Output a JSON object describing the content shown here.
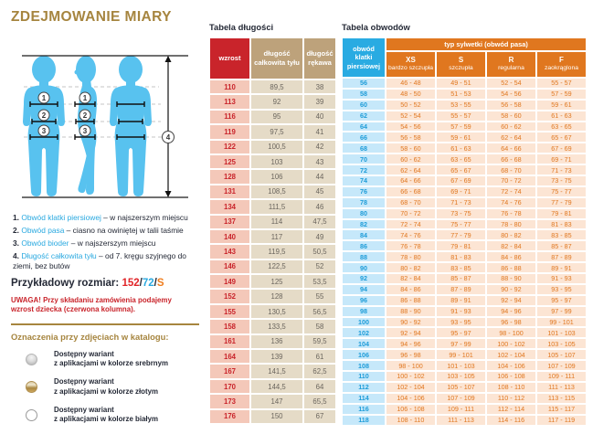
{
  "colors": {
    "accent_gold": "#a6853f",
    "red": "#c9242b",
    "blue": "#29abe2",
    "orange": "#e0771f",
    "tan": "#bda27b",
    "silhouette_blue": "#58c2ef"
  },
  "left_panel": {
    "title": "ZDEJMOWANIE MIARY",
    "illustration": {
      "markers": [
        "1",
        "2",
        "3",
        "4"
      ]
    },
    "measurements": [
      {
        "num": "1.",
        "term": "Obwód klatki piersiowej",
        "desc": " – w najszerszym miejscu"
      },
      {
        "num": "2.",
        "term": "Obwód pasa",
        "desc": " – ciasno na owiniętej w talii taśmie"
      },
      {
        "num": "3.",
        "term": "Obwód bioder",
        "desc": " – w najszerszym miejscu"
      },
      {
        "num": "4.",
        "term": "Długość całkowita tyłu",
        "desc": " – od 7. kręgu szyjnego do ziemi, bez butów"
      }
    ],
    "example_size": {
      "label": "Przykładowy rozmiar: ",
      "height": "152",
      "sep1": "/",
      "waist": "72",
      "sep2": "/",
      "figure": "S"
    },
    "warning": "UWAGA! Przy składaniu zamówienia podajemy wzrost dziecka (czerwona kolumna).",
    "legend": {
      "heading": "Oznaczenia przy zdjęciach w katalogu:",
      "items": [
        {
          "variant": "silver",
          "line1": "Dostępny wariant",
          "line2": "z aplikacjami w kolorze srebrnym"
        },
        {
          "variant": "gold",
          "line1": "Dostępny wariant",
          "line2": "z aplikacjami w kolorze złotym"
        },
        {
          "variant": "white",
          "line1": "Dostępny wariant",
          "line2": "z aplikacjami w kolorze białym"
        }
      ]
    }
  },
  "length_table": {
    "title": "Tabela długości",
    "headers": [
      "wzrost",
      "długość całkowita tyłu",
      "długość rękawa"
    ],
    "rows": [
      [
        "110",
        "89,5",
        "38"
      ],
      [
        "113",
        "92",
        "39"
      ],
      [
        "116",
        "95",
        "40"
      ],
      [
        "119",
        "97,5",
        "41"
      ],
      [
        "122",
        "100,5",
        "42"
      ],
      [
        "125",
        "103",
        "43"
      ],
      [
        "128",
        "106",
        "44"
      ],
      [
        "131",
        "108,5",
        "45"
      ],
      [
        "134",
        "111,5",
        "46"
      ],
      [
        "137",
        "114",
        "47,5"
      ],
      [
        "140",
        "117",
        "49"
      ],
      [
        "143",
        "119,5",
        "50,5"
      ],
      [
        "146",
        "122,5",
        "52"
      ],
      [
        "149",
        "125",
        "53,5"
      ],
      [
        "152",
        "128",
        "55"
      ],
      [
        "155",
        "130,5",
        "56,5"
      ],
      [
        "158",
        "133,5",
        "58"
      ],
      [
        "161",
        "136",
        "59,5"
      ],
      [
        "164",
        "139",
        "61"
      ],
      [
        "167",
        "141,5",
        "62,5"
      ],
      [
        "170",
        "144,5",
        "64"
      ],
      [
        "173",
        "147",
        "65,5"
      ],
      [
        "176",
        "150",
        "67"
      ]
    ]
  },
  "girth_table": {
    "title": "Tabela obwodów",
    "col1_header": "obwód klatki piersiowej",
    "span_header": "typ sylwetki (obwód pasa)",
    "sub_headers": [
      {
        "code": "XS",
        "name": "bardzo szczupła"
      },
      {
        "code": "S",
        "name": "szczupła"
      },
      {
        "code": "R",
        "name": "regularna"
      },
      {
        "code": "F",
        "name": "zaokrąglona"
      }
    ],
    "rows": [
      [
        "56",
        "46 - 48",
        "49 - 51",
        "52 - 54",
        "55 - 57"
      ],
      [
        "58",
        "48 - 50",
        "51 - 53",
        "54 - 56",
        "57 - 59"
      ],
      [
        "60",
        "50 - 52",
        "53 - 55",
        "56 - 58",
        "59 - 61"
      ],
      [
        "62",
        "52 - 54",
        "55 - 57",
        "58 - 60",
        "61 - 63"
      ],
      [
        "64",
        "54 - 56",
        "57 - 59",
        "60 - 62",
        "63 - 65"
      ],
      [
        "66",
        "56 - 58",
        "59 - 61",
        "62 - 64",
        "65 - 67"
      ],
      [
        "68",
        "58 - 60",
        "61 - 63",
        "64 - 66",
        "67 - 69"
      ],
      [
        "70",
        "60 - 62",
        "63 - 65",
        "66 - 68",
        "69 - 71"
      ],
      [
        "72",
        "62 - 64",
        "65 - 67",
        "68 - 70",
        "71 - 73"
      ],
      [
        "74",
        "64 - 66",
        "67 - 69",
        "70 - 72",
        "73 - 75"
      ],
      [
        "76",
        "66 - 68",
        "69 - 71",
        "72 - 74",
        "75 - 77"
      ],
      [
        "78",
        "68 - 70",
        "71 - 73",
        "74 - 76",
        "77 - 79"
      ],
      [
        "80",
        "70 - 72",
        "73 - 75",
        "76 - 78",
        "79 - 81"
      ],
      [
        "82",
        "72 - 74",
        "75 - 77",
        "78 - 80",
        "81 - 83"
      ],
      [
        "84",
        "74 - 76",
        "77 - 79",
        "80 - 82",
        "83 - 85"
      ],
      [
        "86",
        "76 - 78",
        "79 - 81",
        "82 - 84",
        "85 - 87"
      ],
      [
        "88",
        "78 - 80",
        "81 - 83",
        "84 - 86",
        "87 - 89"
      ],
      [
        "90",
        "80 - 82",
        "83 - 85",
        "86 - 88",
        "89 - 91"
      ],
      [
        "92",
        "82 - 84",
        "85 - 87",
        "88 - 90",
        "91 - 93"
      ],
      [
        "94",
        "84 - 86",
        "87 - 89",
        "90 - 92",
        "93 - 95"
      ],
      [
        "96",
        "86 - 88",
        "89 - 91",
        "92 - 94",
        "95 - 97"
      ],
      [
        "98",
        "88 - 90",
        "91 - 93",
        "94 - 96",
        "97 - 99"
      ],
      [
        "100",
        "90 - 92",
        "93 - 95",
        "96 - 98",
        "99 - 101"
      ],
      [
        "102",
        "92 - 94",
        "95 - 97",
        "98 - 100",
        "101 - 103"
      ],
      [
        "104",
        "94 - 96",
        "97 - 99",
        "100 - 102",
        "103 - 105"
      ],
      [
        "106",
        "96 - 98",
        "99 - 101",
        "102 - 104",
        "105 - 107"
      ],
      [
        "108",
        "98 - 100",
        "101 - 103",
        "104 - 106",
        "107 - 109"
      ],
      [
        "110",
        "100 - 102",
        "103 - 105",
        "106 - 108",
        "109 - 111"
      ],
      [
        "112",
        "102 - 104",
        "105 - 107",
        "108 - 110",
        "111 - 113"
      ],
      [
        "114",
        "104 - 106",
        "107 - 109",
        "110 - 112",
        "113 - 115"
      ],
      [
        "116",
        "106 - 108",
        "109 - 111",
        "112 - 114",
        "115 - 117"
      ],
      [
        "118",
        "108 - 110",
        "111 - 113",
        "114 - 116",
        "117 - 119"
      ]
    ]
  }
}
